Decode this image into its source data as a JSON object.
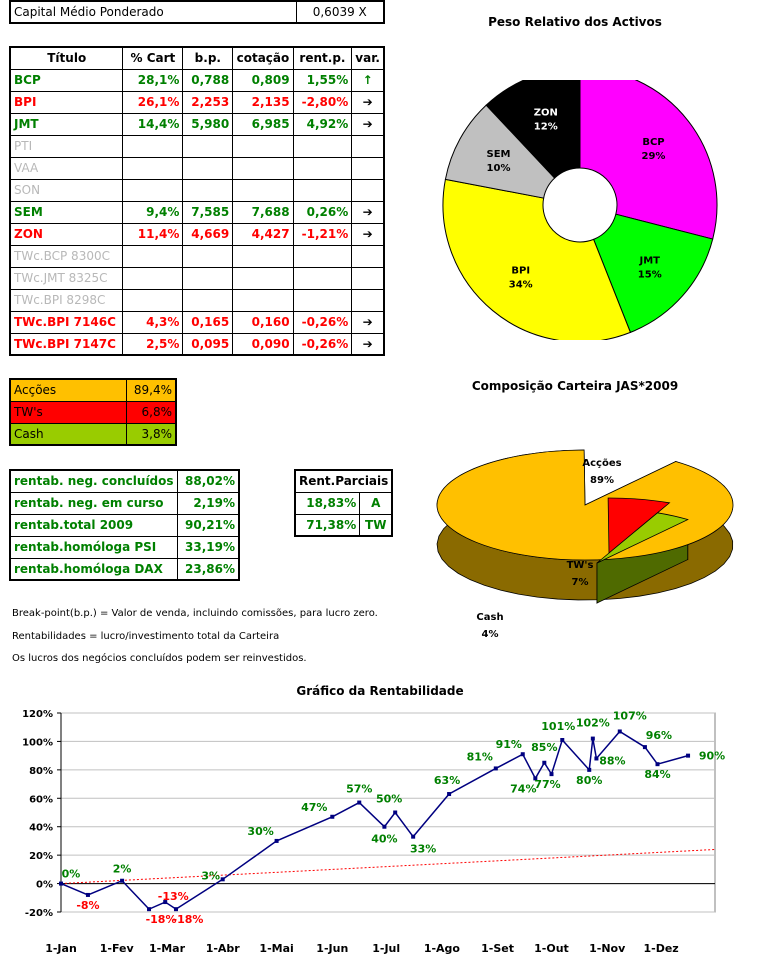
{
  "capital": {
    "label": "Capital Médio Ponderado",
    "value": "0,6039 X"
  },
  "portfolio_table": {
    "headers": [
      "Título",
      "% Cart",
      "b.p.",
      "cotação",
      "rent.p.",
      "var."
    ],
    "rows": [
      {
        "name": "BCP",
        "cart": "28,1%",
        "bp": "0,788",
        "cot": "0,809",
        "rent": "1,55%",
        "var": "↑",
        "color": "green"
      },
      {
        "name": "BPI",
        "cart": "26,1%",
        "bp": "2,253",
        "cot": "2,135",
        "rent": "-2,80%",
        "var": "➔",
        "color": "red"
      },
      {
        "name": "JMT",
        "cart": "14,4%",
        "bp": "5,980",
        "cot": "6,985",
        "rent": "4,92%",
        "var": "➔",
        "color": "green"
      },
      {
        "name": "PTI",
        "cart": "",
        "bp": "",
        "cot": "",
        "rent": "",
        "var": "",
        "color": "grey"
      },
      {
        "name": "VAA",
        "cart": "",
        "bp": "",
        "cot": "",
        "rent": "",
        "var": "",
        "color": "grey"
      },
      {
        "name": "SON",
        "cart": "",
        "bp": "",
        "cot": "",
        "rent": "",
        "var": "",
        "color": "grey"
      },
      {
        "name": "SEM",
        "cart": "9,4%",
        "bp": "7,585",
        "cot": "7,688",
        "rent": "0,26%",
        "var": "➔",
        "color": "green"
      },
      {
        "name": "ZON",
        "cart": "11,4%",
        "bp": "4,669",
        "cot": "4,427",
        "rent": "-1,21%",
        "var": "➔",
        "color": "red"
      },
      {
        "name": "TWc.BCP 8300C",
        "cart": "",
        "bp": "",
        "cot": "",
        "rent": "",
        "var": "",
        "color": "grey"
      },
      {
        "name": "TWc.JMT 8325C",
        "cart": "",
        "bp": "",
        "cot": "",
        "rent": "",
        "var": "",
        "color": "grey"
      },
      {
        "name": "TWc.BPI 8298C",
        "cart": "",
        "bp": "",
        "cot": "",
        "rent": "",
        "var": "",
        "color": "grey"
      },
      {
        "name": "TWc.BPI 7146C",
        "cart": "4,3%",
        "bp": "0,165",
        "cot": "0,160",
        "rent": "-0,26%",
        "var": "➔",
        "color": "red"
      },
      {
        "name": "TWc.BPI 7147C",
        "cart": "2,5%",
        "bp": "0,095",
        "cot": "0,090",
        "rent": "-0,26%",
        "var": "➔",
        "color": "red"
      }
    ]
  },
  "allocation_table": [
    {
      "label": "Acções",
      "value": "89,4%",
      "bg": "#ffc000",
      "fg": "#000000"
    },
    {
      "label": "TW's",
      "value": "6,8%",
      "bg": "#ff0000",
      "fg": "#000000"
    },
    {
      "label": "Cash",
      "value": "3,8%",
      "bg": "#99cc00",
      "fg": "#000000"
    }
  ],
  "returns_table": [
    {
      "label": "rentab. neg. concluídos",
      "value": "88,02%"
    },
    {
      "label": "rentab. neg. em curso",
      "value": "2,19%"
    },
    {
      "label": "rentab.total 2009",
      "value": "90,21%"
    },
    {
      "label": "rentab.homóloga PSI",
      "value": "33,19%"
    },
    {
      "label": "rentab.homóloga DAX",
      "value": "23,86%"
    }
  ],
  "partial_table": {
    "header": "Rent.Parciais",
    "rows": [
      {
        "value": "18,83%",
        "tag": "A"
      },
      {
        "value": "71,38%",
        "tag": "TW"
      }
    ]
  },
  "notes": [
    "Break-point(b.p.) = Valor de venda, incluindo comissões, para lucro zero.",
    "Rentabilidades = lucro/investimento total da Carteira",
    "Os lucros dos negócios concluídos podem ser reinvestidos."
  ],
  "chart_data": [
    {
      "type": "pie",
      "title": "Peso Relativo dos Activos",
      "donut": true,
      "slices": [
        {
          "label": "BCP",
          "pct_label": "29%",
          "value": 29,
          "color": "#ff00ff"
        },
        {
          "label": "JMT",
          "pct_label": "15%",
          "value": 15,
          "color": "#00ff00"
        },
        {
          "label": "BPI",
          "pct_label": "34%",
          "value": 34,
          "color": "#ffff00"
        },
        {
          "label": "SEM",
          "pct_label": "10%",
          "value": 10,
          "color": "#c0c0c0"
        },
        {
          "label": "ZON",
          "pct_label": "12%",
          "value": 12,
          "color": "#000000"
        }
      ]
    },
    {
      "type": "pie",
      "title": "Composição Carteira JAS*2009",
      "three_d": true,
      "slices": [
        {
          "label": "Acções",
          "pct_label": "89%",
          "value": 89.4,
          "color": "#ffc000"
        },
        {
          "label": "TW's",
          "pct_label": "7%",
          "value": 6.8,
          "color": "#ff0000"
        },
        {
          "label": "Cash",
          "pct_label": "4%",
          "value": 3.8,
          "color": "#99cc00"
        }
      ]
    },
    {
      "type": "line",
      "title": "Gráfico da Rentabilidade",
      "x_ticks": [
        "1-Jan",
        "1-Fev",
        "1-Mar",
        "1-Abr",
        "1-Mai",
        "1-Jun",
        "1-Jul",
        "1-Ago",
        "1-Set",
        "1-Out",
        "1-Nov",
        "1-Dez"
      ],
      "y_ticks": [
        "120%",
        "100%",
        "80%",
        "60%",
        "40%",
        "20%",
        "0%",
        "-20%"
      ],
      "ylim": [
        -20,
        120
      ],
      "grid": true,
      "series": [
        {
          "color": "#000080",
          "points": [
            {
              "x": 1,
              "y": 0,
              "label": "0%"
            },
            {
              "x": 16,
              "y": -8,
              "label": "-8%"
            },
            {
              "x": 35,
              "y": 2,
              "label": "2%"
            },
            {
              "x": 50,
              "y": -18,
              "label": "-18%"
            },
            {
              "x": 59,
              "y": -13,
              "label": "-13%"
            },
            {
              "x": 65,
              "y": -18,
              "label": "-18%"
            },
            {
              "x": 91,
              "y": 3,
              "label": "3%"
            },
            {
              "x": 121,
              "y": 30,
              "label": "30%"
            },
            {
              "x": 152,
              "y": 47,
              "label": "47%"
            },
            {
              "x": 167,
              "y": 57,
              "label": "57%"
            },
            {
              "x": 181,
              "y": 40,
              "label": "40%"
            },
            {
              "x": 187,
              "y": 50,
              "label": "50%"
            },
            {
              "x": 197,
              "y": 33,
              "label": "33%"
            },
            {
              "x": 217,
              "y": 63,
              "label": "63%"
            },
            {
              "x": 243,
              "y": 81,
              "label": "81%"
            },
            {
              "x": 258,
              "y": 91,
              "label": "91%"
            },
            {
              "x": 265,
              "y": 74,
              "label": "74%"
            },
            {
              "x": 270,
              "y": 85,
              "label": "85%"
            },
            {
              "x": 274,
              "y": 77,
              "label": "77%"
            },
            {
              "x": 280,
              "y": 101,
              "label": "101%"
            },
            {
              "x": 295,
              "y": 80,
              "label": "80%"
            },
            {
              "x": 297,
              "y": 102,
              "label": "102%"
            },
            {
              "x": 299,
              "y": 88,
              "label": "88%"
            },
            {
              "x": 312,
              "y": 107,
              "label": "107%"
            },
            {
              "x": 326,
              "y": 96,
              "label": "96%"
            },
            {
              "x": 333,
              "y": 84,
              "label": "84%"
            },
            {
              "x": 350,
              "y": 90,
              "label": "90%"
            }
          ]
        },
        {
          "color": "#ff0000",
          "style": "dotted",
          "points": [
            {
              "x": 1,
              "y": 0
            },
            {
              "x": 365,
              "y": 24
            }
          ]
        }
      ]
    }
  ]
}
